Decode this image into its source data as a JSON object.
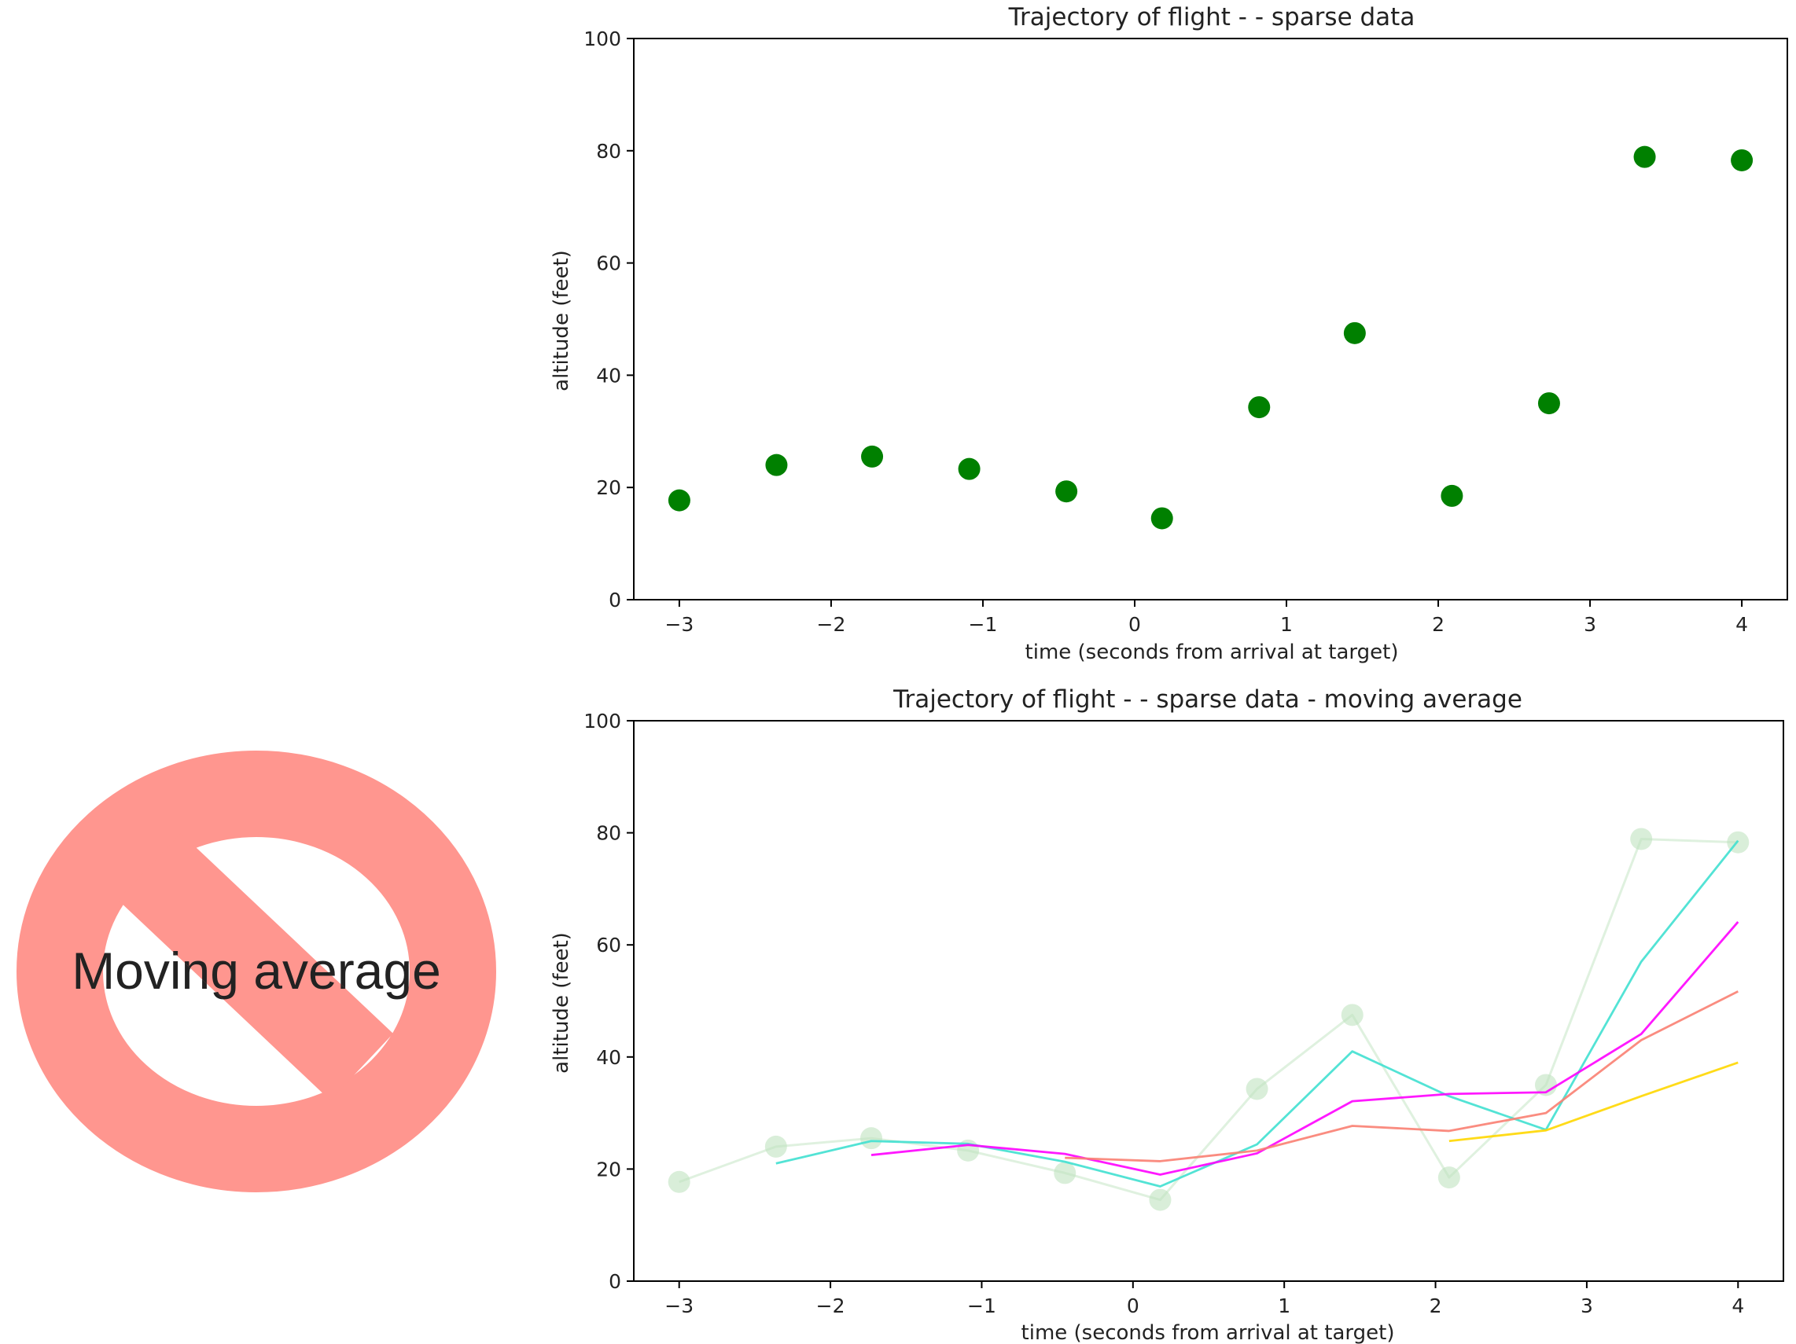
{
  "sign": {
    "label": "Moving average",
    "ring_color": "#FF968F",
    "text_color": "#000000",
    "text_over_bar_color": "#8B0000"
  },
  "chart_data": [
    {
      "type": "scatter",
      "title": "Trajectory of flight -  -  sparse data",
      "xlabel": "time (seconds from arrival at target)",
      "ylabel": "altitude (feet)",
      "xlim": [
        -3.3,
        4.3
      ],
      "ylim": [
        0,
        100
      ],
      "xticks": [
        -3,
        -2,
        -1,
        0,
        1,
        2,
        3,
        4
      ],
      "xtick_labels": [
        "−3",
        "−2",
        "−1",
        "0",
        "1",
        "2",
        "3",
        "4"
      ],
      "yticks": [
        0,
        20,
        40,
        60,
        80,
        100
      ],
      "ytick_labels": [
        "0",
        "20",
        "40",
        "60",
        "80",
        "100"
      ],
      "grid": false,
      "series": [
        {
          "color": "#008000",
          "x": [
            -3.0,
            -2.36,
            -1.73,
            -1.09,
            -0.45,
            0.18,
            0.82,
            1.45,
            2.09,
            2.73,
            3.36,
            4.0
          ],
          "y": [
            17.7,
            24.0,
            25.5,
            23.3,
            19.3,
            14.5,
            34.3,
            47.5,
            18.5,
            35.0,
            78.9,
            78.3
          ]
        }
      ]
    },
    {
      "type": "line",
      "title": "Trajectory of flight -  - sparse data - moving average",
      "xlabel": "time (seconds from arrival at target)",
      "ylabel": "altitude (feet)",
      "xlim": [
        -3.3,
        4.3
      ],
      "ylim": [
        0,
        100
      ],
      "xticks": [
        -3,
        -2,
        -1,
        0,
        1,
        2,
        3,
        4
      ],
      "xtick_labels": [
        "−3",
        "−2",
        "−1",
        "0",
        "1",
        "2",
        "3",
        "4"
      ],
      "yticks": [
        0,
        20,
        40,
        60,
        80,
        100
      ],
      "ytick_labels": [
        "0",
        "20",
        "40",
        "60",
        "80",
        "100"
      ],
      "grid": false,
      "series": [
        {
          "color": "#BFE3BF",
          "markers": true,
          "x": [
            -3.0,
            -2.36,
            -1.73,
            -1.09,
            -0.45,
            0.18,
            0.82,
            1.45,
            2.09,
            2.73,
            3.36,
            4.0
          ],
          "y": [
            17.7,
            24.0,
            25.5,
            23.3,
            19.3,
            14.5,
            34.3,
            47.5,
            18.5,
            35.0,
            78.9,
            78.3
          ]
        },
        {
          "color": "#40E0D0",
          "x": [
            -2.36,
            -1.73,
            -1.09,
            -0.45,
            0.18,
            0.82,
            1.45,
            2.09,
            2.73,
            3.36,
            4.0
          ],
          "y": [
            21.0,
            25.0,
            24.5,
            21.3,
            16.9,
            24.4,
            41.0,
            33.0,
            27.0,
            57.0,
            78.6
          ]
        },
        {
          "color": "#FF00FF",
          "x": [
            -1.73,
            -1.09,
            -0.45,
            0.18,
            0.82,
            1.45,
            2.09,
            2.73,
            3.36,
            4.0
          ],
          "y": [
            22.5,
            24.3,
            22.7,
            19.0,
            22.8,
            32.1,
            33.4,
            33.7,
            44.1,
            64.1
          ]
        },
        {
          "color": "#FA8072",
          "x": [
            -0.45,
            0.18,
            0.82,
            1.45,
            2.09,
            2.73,
            3.36,
            4.0
          ],
          "y": [
            22.0,
            21.4,
            23.3,
            27.7,
            26.8,
            30.0,
            43.0,
            51.7
          ]
        },
        {
          "color": "#FFD700",
          "x": [
            2.09,
            2.73,
            3.36,
            4.0
          ],
          "y": [
            25.0,
            26.9,
            33.0,
            39.0
          ]
        }
      ]
    }
  ]
}
